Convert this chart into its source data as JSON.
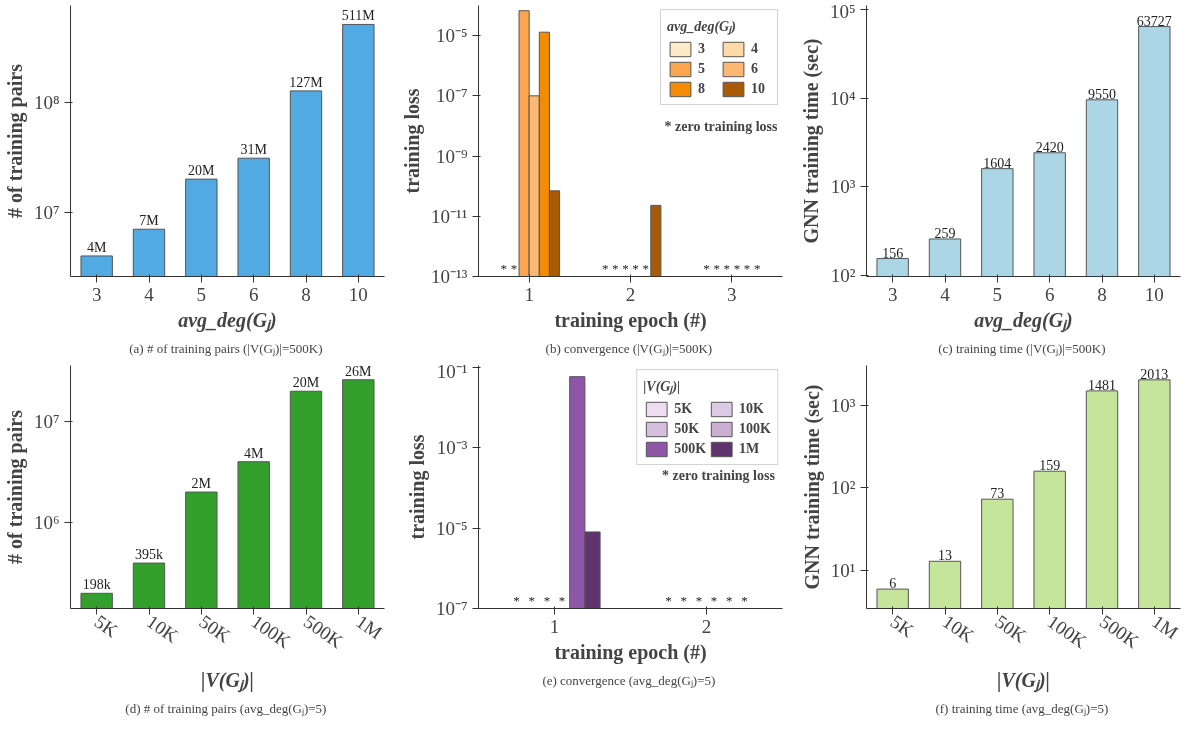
{
  "chart_data": [
    {
      "type": "bar",
      "log": true,
      "categories": [
        "3",
        "4",
        "5",
        "6",
        "8",
        "10"
      ],
      "xlabel": "avg_deg(Gⱼ)",
      "ylabel": "# of training pairs",
      "ylim": [
        2600000,
        760000000
      ],
      "yticks": [
        {
          "value": 10000000,
          "label": "10⁷"
        },
        {
          "value": 100000000,
          "label": "10⁸"
        }
      ],
      "series": [
        {
          "color": "#52aae3",
          "values": [
            4000000,
            7000000,
            20000000,
            31000000,
            127000000,
            511000000
          ],
          "value_labels": [
            "4M",
            "7M",
            "20M",
            "31M",
            "127M",
            "511M"
          ]
        }
      ],
      "annotations": [
        "(a)  # of training pairs (|V(Gⱼ)|=500K)"
      ]
    },
    {
      "type": "bar",
      "log": true,
      "categories": [
        "1",
        "2",
        "3"
      ],
      "xlabel": "training epoch (#)",
      "ylabel": "training loss",
      "ylim": [
        1e-13,
        0.0001
      ],
      "yticks": [
        {
          "value": 1e-13,
          "label": "10⁻¹³"
        },
        {
          "value": 1e-11,
          "label": "10⁻¹¹"
        },
        {
          "value": 1e-09,
          "label": "10⁻⁹"
        },
        {
          "value": 1e-07,
          "label": "10⁻⁷"
        },
        {
          "value": 1e-05,
          "label": "10⁻⁵"
        }
      ],
      "legend": "top right",
      "legend_title": "avg_deg(Gⱼ)",
      "series": [
        {
          "name": "3",
          "color": "#fdebc8",
          "values": [
            null,
            null,
            null
          ],
          "value_labels": [
            "*",
            "*",
            "*"
          ]
        },
        {
          "name": "4",
          "color": "#fddaa8",
          "values": [
            null,
            null,
            null
          ],
          "value_labels": [
            "*",
            "*",
            "*"
          ]
        },
        {
          "name": "5",
          "color": "#fca54e",
          "values": [
            6.7e-05,
            null,
            null
          ],
          "value_labels": [
            null,
            "*",
            "*"
          ]
        },
        {
          "name": "6",
          "color": "#fdb873",
          "values": [
            1e-07,
            null,
            null
          ],
          "value_labels": [
            null,
            "*",
            "*"
          ]
        },
        {
          "name": "8",
          "color": "#f38b05",
          "values": [
            1.3e-05,
            null,
            null
          ],
          "value_labels": [
            null,
            "*",
            "*"
          ]
        },
        {
          "name": "10",
          "color": "#a85a04",
          "values": [
            7e-11,
            2.3e-11,
            null
          ],
          "value_labels": [
            null,
            null,
            "*"
          ]
        }
      ],
      "annotations": [
        "(b)  convergence (|V(Gⱼ)|=500K)",
        "* zero training loss"
      ]
    },
    {
      "type": "bar",
      "log": true,
      "categories": [
        "3",
        "4",
        "5",
        "6",
        "8",
        "10"
      ],
      "xlabel": "avg_deg(Gⱼ)",
      "ylabel": "GNN training time (sec)",
      "ylim": [
        98,
        110000
      ],
      "yticks": [
        {
          "value": 100,
          "label": "10²"
        },
        {
          "value": 1000,
          "label": "10³"
        },
        {
          "value": 10000,
          "label": "10⁴"
        },
        {
          "value": 100000,
          "label": "10⁵"
        }
      ],
      "data_labels": true,
      "series": [
        {
          "color": "#acd6e5",
          "values": [
            156,
            259,
            1604,
            2420,
            9550,
            63727
          ]
        }
      ],
      "annotations": [
        "(c)  training time (|V(Gⱼ)|=500K)"
      ]
    },
    {
      "type": "bar",
      "log": true,
      "categories": [
        "5K",
        "10K",
        "50K",
        "100K",
        "500K",
        "1M"
      ],
      "xlabel": "|V(Gⱼ)|",
      "ylabel": "# of training pairs",
      "ylim": [
        140000,
        36000000
      ],
      "yticks": [
        {
          "value": 1000000,
          "label": "10⁶"
        },
        {
          "value": 10000000,
          "label": "10⁷"
        }
      ],
      "series": [
        {
          "color": "#33a02c",
          "values": [
            198000,
            395000,
            2000000,
            4000000,
            20000000,
            26000000
          ],
          "value_labels": [
            "198k",
            "395k",
            "2M",
            "4M",
            "20M",
            "26M"
          ]
        }
      ],
      "annotations": [
        "(d)  # of training pairs (avg_deg(Gⱼ)=5)"
      ]
    },
    {
      "type": "bar",
      "log": true,
      "categories": [
        "1",
        "2"
      ],
      "xlabel": "training epoch (#)",
      "ylabel": "training loss",
      "ylim": [
        1e-07,
        0.11
      ],
      "yticks": [
        {
          "value": 1e-07,
          "label": "10⁻⁷"
        },
        {
          "value": 1e-05,
          "label": "10⁻⁵"
        },
        {
          "value": 0.001,
          "label": "10⁻³"
        },
        {
          "value": 0.1,
          "label": "10⁻¹"
        }
      ],
      "legend": "top right",
      "legend_title": "|V(Gⱼ)|",
      "series": [
        {
          "name": "5K",
          "color": "#eedcef",
          "values": [
            null,
            null
          ],
          "value_labels": [
            "*",
            "*"
          ]
        },
        {
          "name": "10K",
          "color": "#dccbe5",
          "values": [
            null,
            null
          ],
          "value_labels": [
            "*",
            "*"
          ]
        },
        {
          "name": "50K",
          "color": "#d5bfdc",
          "values": [
            null,
            null
          ],
          "value_labels": [
            "*",
            "*"
          ]
        },
        {
          "name": "100K",
          "color": "#c9aed2",
          "values": [
            null,
            null
          ],
          "value_labels": [
            "*",
            "*"
          ]
        },
        {
          "name": "500K",
          "color": "#8f55a8",
          "values": [
            0.058,
            null
          ],
          "value_labels": [
            null,
            "*"
          ]
        },
        {
          "name": "1M",
          "color": "#60336e",
          "values": [
            8e-06,
            null
          ],
          "value_labels": [
            null,
            "*"
          ]
        }
      ],
      "annotations": [
        "(e)  convergence (avg_deg(Gⱼ)=5)",
        "* zero training loss"
      ]
    },
    {
      "type": "bar",
      "log": true,
      "categories": [
        "5K",
        "10K",
        "50K",
        "100K",
        "500K",
        "1M"
      ],
      "xlabel": "|V(Gⱼ)|",
      "ylabel": "GNN training time (sec)",
      "ylim": [
        3.5,
        3000
      ],
      "yticks": [
        {
          "value": 10,
          "label": "10¹"
        },
        {
          "value": 100,
          "label": "10²"
        },
        {
          "value": 1000,
          "label": "10³"
        }
      ],
      "data_labels": true,
      "series": [
        {
          "color": "#c5e69a",
          "values": [
            6,
            13,
            73,
            159,
            1481,
            2013
          ]
        }
      ],
      "annotations": [
        "(f)  training time (avg_deg(Gⱼ)=5)"
      ]
    }
  ]
}
